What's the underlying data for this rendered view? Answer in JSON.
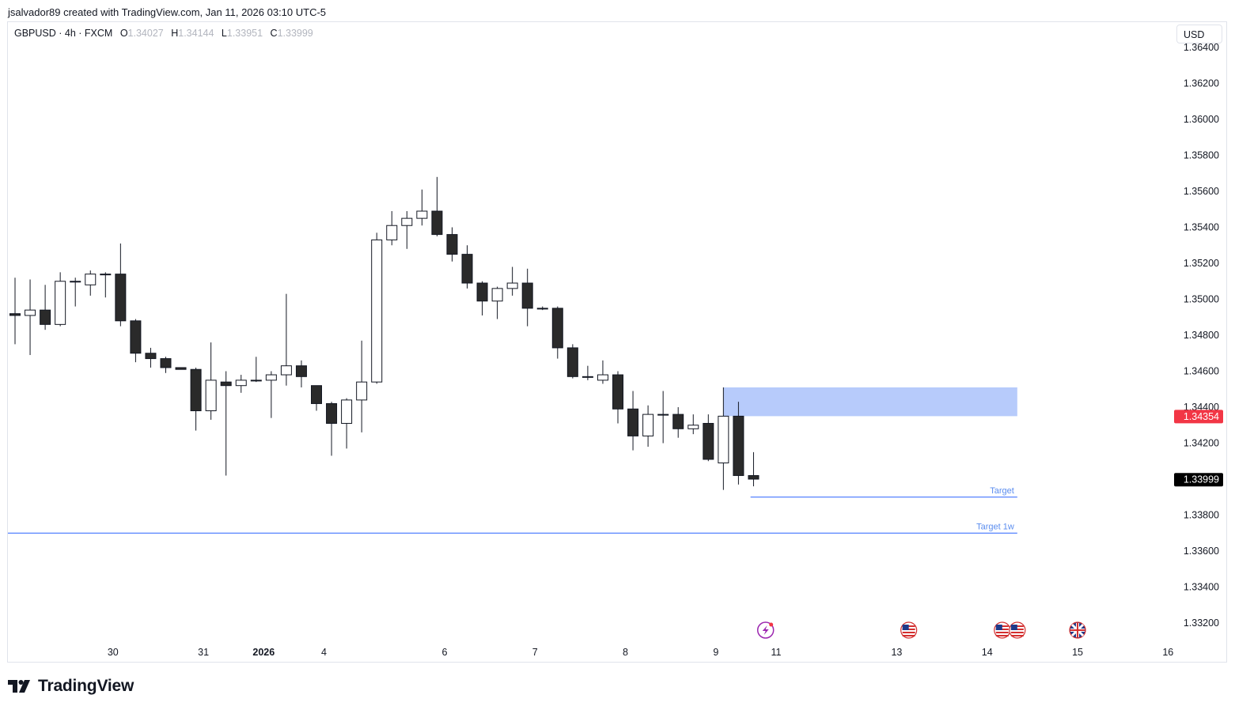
{
  "attribution": "jsalvador89 created with TradingView.com, Jan 11, 2026 03:10 UTC-5",
  "header": {
    "symbol": "GBPUSD · 4h · FXCM",
    "open_label": "O",
    "open": "1.34027",
    "high_label": "H",
    "high": "1.34144",
    "low_label": "L",
    "low": "1.33951",
    "close_label": "C",
    "close": "1.33999"
  },
  "currency_button": "USD",
  "brand": "TradingView",
  "colors": {
    "bear": "#2a2a2a",
    "bull": "#ffffff",
    "wick": "#131722",
    "zone": "#b3c8fb",
    "target_line": "#2962ff",
    "price_badge_red": "#f23645",
    "last_badge": "#000000"
  },
  "chart_data": {
    "type": "candlestick",
    "symbol": "GBPUSD",
    "timeframe": "4h",
    "ylim": [
      1.331,
      1.365
    ],
    "y_ticks": [
      "1.36400",
      "1.36200",
      "1.36000",
      "1.35800",
      "1.35600",
      "1.35400",
      "1.35200",
      "1.35000",
      "1.34800",
      "1.34600",
      "1.34400",
      "1.34200",
      "1.34000",
      "1.33800",
      "1.33600",
      "1.33400",
      "1.33200"
    ],
    "y_tick_values": [
      1.364,
      1.362,
      1.36,
      1.358,
      1.356,
      1.354,
      1.352,
      1.35,
      1.348,
      1.346,
      1.344,
      1.342,
      1.34,
      1.338,
      1.336,
      1.334,
      1.332
    ],
    "x_ticks": [
      {
        "label": "30",
        "bar": 6.5
      },
      {
        "label": "31",
        "bar": 12.5
      },
      {
        "label": "2026",
        "bar": 16.5,
        "bold": true
      },
      {
        "label": "4",
        "bar": 20.5
      },
      {
        "label": "6",
        "bar": 28.5
      },
      {
        "label": "7",
        "bar": 34.5
      },
      {
        "label": "8",
        "bar": 40.5
      },
      {
        "label": "9",
        "bar": 46.5
      },
      {
        "label": "11",
        "bar": 50.5
      },
      {
        "label": "13",
        "bar": 58.5
      },
      {
        "label": "14",
        "bar": 64.5
      },
      {
        "label": "15",
        "bar": 70.5
      },
      {
        "label": "16",
        "bar": 76.5
      }
    ],
    "candles": [
      [
        1.3492,
        1.3512,
        1.3475,
        1.3491
      ],
      [
        1.3491,
        1.3511,
        1.3469,
        1.3494
      ],
      [
        1.3494,
        1.3508,
        1.3483,
        1.3486
      ],
      [
        1.3486,
        1.3515,
        1.3485,
        1.351
      ],
      [
        1.351,
        1.3512,
        1.3496,
        1.351
      ],
      [
        1.3508,
        1.3516,
        1.3502,
        1.3514
      ],
      [
        1.3514,
        1.3515,
        1.3501,
        1.3514
      ],
      [
        1.3514,
        1.3531,
        1.3485,
        1.3488
      ],
      [
        1.3488,
        1.3489,
        1.3465,
        1.347
      ],
      [
        1.347,
        1.3473,
        1.3462,
        1.3467
      ],
      [
        1.3467,
        1.3468,
        1.3459,
        1.3462
      ],
      [
        1.3462,
        1.3462,
        1.3461,
        1.3461
      ],
      [
        1.3461,
        1.3462,
        1.3427,
        1.3438
      ],
      [
        1.3438,
        1.3476,
        1.3433,
        1.3455
      ],
      [
        1.3454,
        1.346,
        1.3402,
        1.3452
      ],
      [
        1.3452,
        1.3458,
        1.3448,
        1.3455
      ],
      [
        1.3455,
        1.3468,
        1.3454,
        1.3455
      ],
      [
        1.3455,
        1.346,
        1.3434,
        1.3458
      ],
      [
        1.3458,
        1.3503,
        1.3452,
        1.3463
      ],
      [
        1.3463,
        1.3466,
        1.3451,
        1.3457
      ],
      [
        1.3452,
        1.3452,
        1.3438,
        1.3442
      ],
      [
        1.3442,
        1.3443,
        1.3413,
        1.3431
      ],
      [
        1.3431,
        1.3445,
        1.3417,
        1.3444
      ],
      [
        1.3444,
        1.3477,
        1.3426,
        1.3454
      ],
      [
        1.3454,
        1.3537,
        1.3453,
        1.3533
      ],
      [
        1.3533,
        1.3549,
        1.353,
        1.3541
      ],
      [
        1.3541,
        1.3549,
        1.3528,
        1.3545
      ],
      [
        1.3545,
        1.3561,
        1.3541,
        1.3549
      ],
      [
        1.3549,
        1.3568,
        1.3535,
        1.3536
      ],
      [
        1.3536,
        1.354,
        1.3521,
        1.3525
      ],
      [
        1.3525,
        1.353,
        1.3506,
        1.3509
      ],
      [
        1.3509,
        1.351,
        1.3491,
        1.3499
      ],
      [
        1.3499,
        1.3507,
        1.3489,
        1.3506
      ],
      [
        1.3506,
        1.3518,
        1.3502,
        1.3509
      ],
      [
        1.3509,
        1.3517,
        1.3485,
        1.3495
      ],
      [
        1.3495,
        1.3496,
        1.3494,
        1.3495
      ],
      [
        1.3495,
        1.3496,
        1.3467,
        1.3473
      ],
      [
        1.3473,
        1.3475,
        1.3456,
        1.3457
      ],
      [
        1.3457,
        1.3463,
        1.3455,
        1.3457
      ],
      [
        1.3455,
        1.3466,
        1.3453,
        1.3458
      ],
      [
        1.3458,
        1.346,
        1.3431,
        1.3439
      ],
      [
        1.3439,
        1.3449,
        1.3416,
        1.3424
      ],
      [
        1.3424,
        1.3441,
        1.3418,
        1.3436
      ],
      [
        1.3436,
        1.3449,
        1.342,
        1.3436
      ],
      [
        1.3436,
        1.344,
        1.3423,
        1.3428
      ],
      [
        1.3428,
        1.3436,
        1.3425,
        1.343
      ],
      [
        1.3431,
        1.3436,
        1.341,
        1.3411
      ],
      [
        1.3409,
        1.3451,
        1.3394,
        1.3435
      ],
      [
        1.3435,
        1.3443,
        1.3397,
        1.3402
      ],
      [
        1.3402,
        1.3415,
        1.3396,
        1.34
      ]
    ],
    "annotations": {
      "zone": {
        "from_bar": 47.0,
        "to_bar": 66.5,
        "top": 1.3451,
        "bottom": 1.3435,
        "price_label": "1.34354"
      },
      "target": {
        "label": "Target",
        "price": 1.339,
        "from_bar": 48.8,
        "to_bar": 66.5
      },
      "target_1w": {
        "label": "Target 1w",
        "price": 1.337,
        "from_bar": -0.5,
        "to_bar": 66.5
      },
      "last_price_label": "1.33999",
      "last_price": 1.33999
    },
    "events": [
      {
        "type": "bolt",
        "bar": 49.8,
        "color": "#9c27b0"
      },
      {
        "type": "us",
        "bar": 59.3
      },
      {
        "type": "us",
        "bar": 65.5
      },
      {
        "type": "us",
        "bar": 66.5
      },
      {
        "type": "uk",
        "bar": 70.5
      }
    ]
  }
}
